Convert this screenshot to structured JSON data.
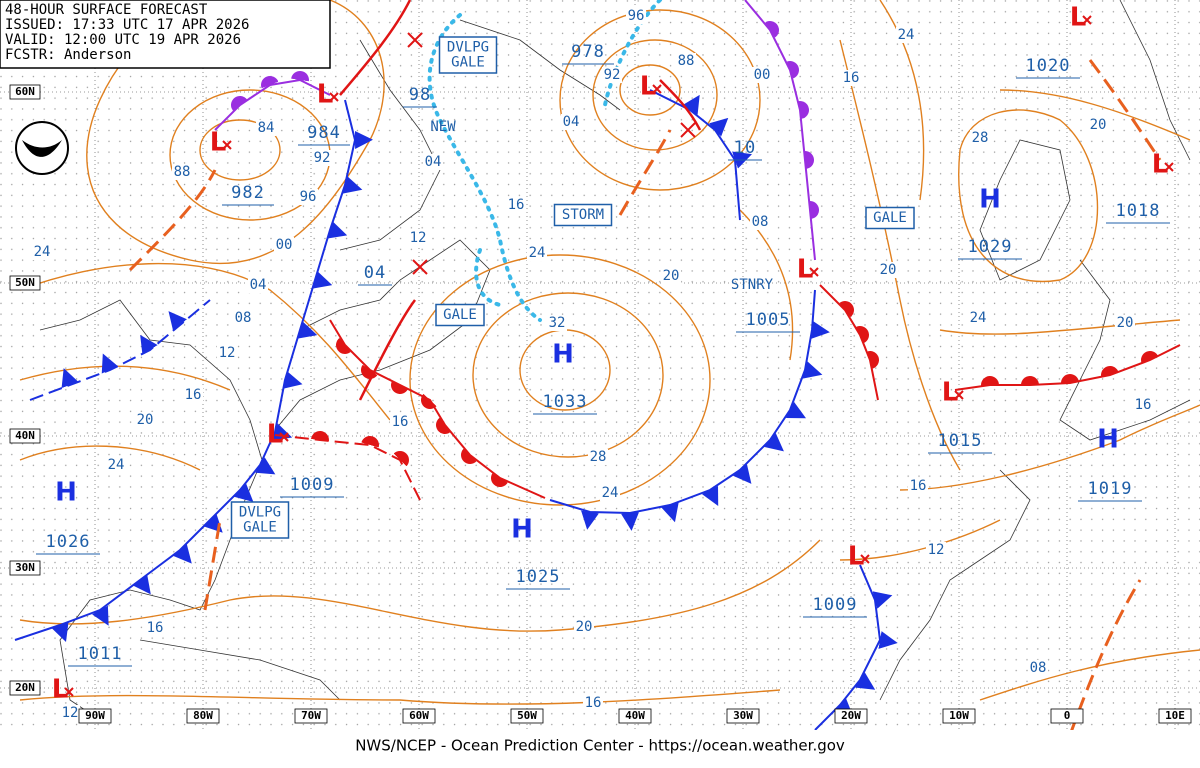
{
  "header": {
    "lines": [
      "48-HOUR SURFACE FORECAST",
      "ISSUED: 17:33 UTC 17 APR 2026",
      "VALID: 12:00 UTC 19 APR 2026",
      "FCSTR: Anderson"
    ]
  },
  "highs": [
    {
      "symbol": "H",
      "pressure": "1033"
    },
    {
      "symbol": "H",
      "pressure": "1025"
    },
    {
      "symbol": "H",
      "pressure": "1026"
    },
    {
      "symbol": "H",
      "pressure": "1029"
    },
    {
      "symbol": "H",
      "pressure": "1019"
    }
  ],
  "lows": [
    {
      "symbol": "L",
      "pressure": "984"
    },
    {
      "symbol": "L",
      "pressure": "982"
    },
    {
      "symbol": "L",
      "pressure": "978"
    },
    {
      "symbol": "L",
      "pressure": "1005"
    },
    {
      "symbol": "L",
      "pressure": "1015"
    },
    {
      "symbol": "L",
      "pressure": "1009"
    },
    {
      "symbol": "L",
      "pressure": "1009"
    },
    {
      "symbol": "L",
      "pressure": "1011"
    },
    {
      "symbol": "L",
      "pressure": "1020"
    },
    {
      "symbol": "L",
      "pressure": "1018"
    }
  ],
  "center_labels": [
    "98",
    "04",
    "10"
  ],
  "warnings": [
    {
      "lines": [
        "DVLPG",
        "GALE"
      ]
    },
    {
      "lines": [
        "STORM"
      ]
    },
    {
      "lines": [
        "GALE"
      ]
    },
    {
      "lines": [
        "DVLPG",
        "GALE"
      ]
    },
    {
      "lines": [
        "GALE"
      ]
    }
  ],
  "annotations": [
    "NEW",
    "STNRY"
  ],
  "isobar_labels": [
    "84",
    "92",
    "96",
    "88",
    "00",
    "04",
    "24",
    "08",
    "12",
    "16",
    "20",
    "24",
    "04",
    "12",
    "16",
    "24",
    "32",
    "20",
    "08",
    "16",
    "00",
    "04",
    "88",
    "92",
    "96",
    "24",
    "28",
    "20",
    "24",
    "20",
    "20",
    "16",
    "16",
    "12",
    "08",
    "16",
    "28",
    "24",
    "20",
    "16",
    "16",
    "12"
  ],
  "latitudes": [
    "60N",
    "50N",
    "40N",
    "30N",
    "20N"
  ],
  "longitudes": [
    "90W",
    "80W",
    "70W",
    "60W",
    "50W",
    "40W",
    "30W",
    "20W",
    "10W",
    "0",
    "10E"
  ],
  "footer": "NWS/NCEP - Ocean Prediction Center - https://ocean.weather.gov"
}
